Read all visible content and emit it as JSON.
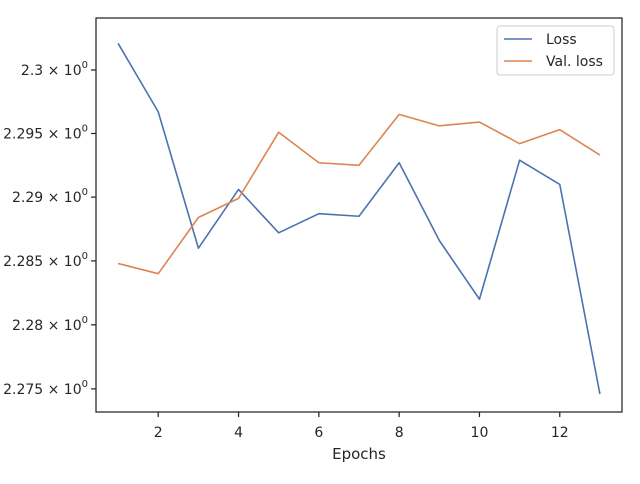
{
  "chart_data": {
    "type": "line",
    "title": "",
    "xlabel": "Epochs",
    "ylabel": "",
    "x": [
      1,
      2,
      3,
      4,
      5,
      6,
      7,
      8,
      9,
      10,
      11,
      12,
      13
    ],
    "xlim": [
      0.45,
      13.55
    ],
    "ylim": [
      2.2732,
      2.3041
    ],
    "yscale": "log",
    "grid": false,
    "legend_position": "upper right",
    "xticks": [
      2,
      4,
      6,
      8,
      10,
      12
    ],
    "xtick_labels": [
      "2",
      "4",
      "6",
      "8",
      "10",
      "12"
    ],
    "yticks": [
      2.275,
      2.28,
      2.285,
      2.29,
      2.295,
      2.3
    ],
    "ytick_labels": [
      {
        "mantissa": "2.275",
        "base": "10",
        "exp": "0"
      },
      {
        "mantissa": "2.28",
        "base": "10",
        "exp": "0"
      },
      {
        "mantissa": "2.285",
        "base": "10",
        "exp": "0"
      },
      {
        "mantissa": "2.29",
        "base": "10",
        "exp": "0"
      },
      {
        "mantissa": "2.295",
        "base": "10",
        "exp": "0"
      },
      {
        "mantissa": "2.3",
        "base": "10",
        "exp": "0"
      }
    ],
    "series": [
      {
        "name": "Loss",
        "color": "#4c72b0",
        "values": [
          2.3021,
          2.2967,
          2.286,
          2.2906,
          2.2872,
          2.2887,
          2.2885,
          2.2927,
          2.2866,
          2.282,
          2.2929,
          2.291,
          2.2746
        ]
      },
      {
        "name": "Val. loss",
        "color": "#dd8452",
        "values": [
          2.2848,
          2.284,
          2.2884,
          2.2899,
          2.2951,
          2.2927,
          2.2925,
          2.2965,
          2.2956,
          2.2959,
          2.2942,
          2.2953,
          2.2933
        ]
      }
    ]
  }
}
